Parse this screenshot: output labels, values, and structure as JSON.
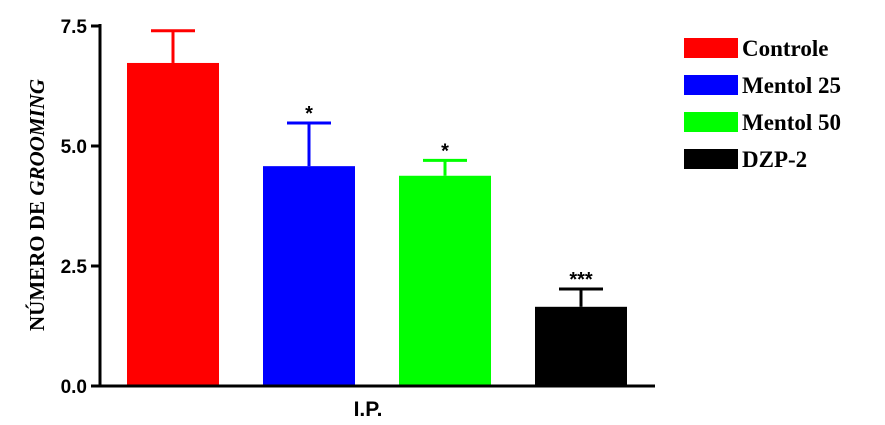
{
  "chart_data": {
    "type": "bar",
    "categories": [
      "Controle",
      "Mentol 25",
      "Mentol 50",
      "DZP-2"
    ],
    "values": [
      6.73,
      4.58,
      4.38,
      1.65
    ],
    "error_upper": [
      7.4,
      5.48,
      4.7,
      2.02
    ],
    "significance": [
      "",
      "*",
      "*",
      "***"
    ],
    "colors": [
      "#ff0000",
      "#0000ff",
      "#00ff00",
      "#000000"
    ],
    "xlabel": "I.P.",
    "ylabel_prefix": "NÚMERO DE ",
    "ylabel_emph": "GROOMING",
    "ylim": [
      0,
      7.5
    ],
    "yticks": [
      0,
      2.5,
      5.0,
      7.5
    ],
    "ytick_labels": [
      "0.0",
      "2.5",
      "5.0",
      "7.5"
    ],
    "legend": [
      "Controle",
      "Mentol 25",
      "Mentol 50",
      "DZP-2"
    ],
    "legend_position": "right",
    "grid": false
  }
}
